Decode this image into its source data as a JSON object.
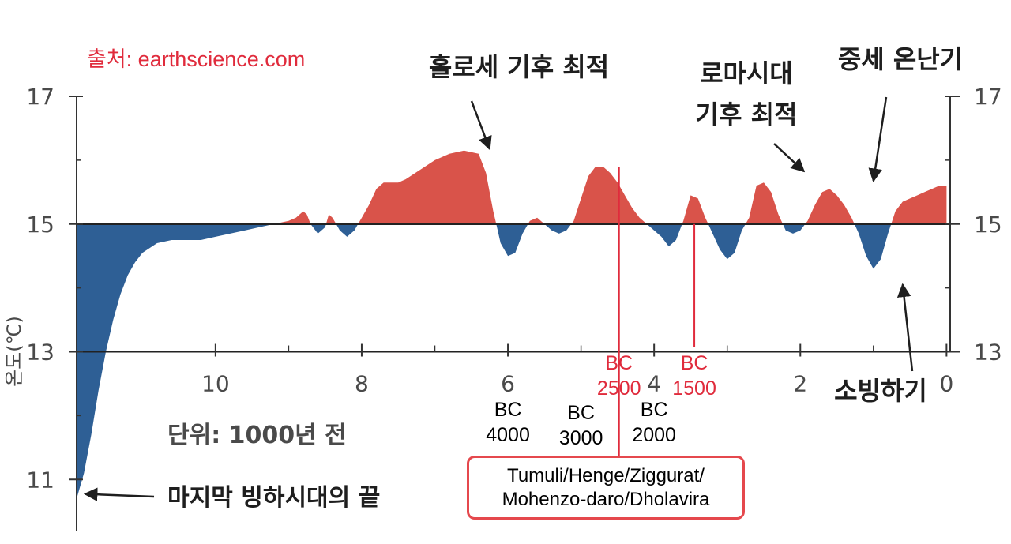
{
  "source_label": "출처: earthscience.com",
  "colors": {
    "warm": "#d9534a",
    "cold": "#2e5f95",
    "accent": "#e02b3c",
    "axis": "#333333"
  },
  "chart_data": {
    "type": "area",
    "xlabel": "단위: 1000년 전",
    "ylabel": "온도(℃)",
    "x_ticks": [
      "10",
      "8",
      "6",
      "4",
      "2",
      "0"
    ],
    "y_ticks": [
      "17",
      "15",
      "13",
      "11"
    ],
    "y_ticks_right": [
      "17",
      "15",
      "13"
    ],
    "xlim": [
      11.9,
      -0.05
    ],
    "ylim": [
      10.2,
      17
    ],
    "baseline": 15,
    "series": [
      {
        "x": [
          11.9,
          11.8,
          11.7,
          11.6,
          11.5,
          11.4,
          11.3,
          11.2,
          11.1,
          11.0,
          10.8,
          10.6,
          10.4,
          10.2,
          10.0,
          9.8,
          9.6,
          9.4,
          9.2,
          9.0,
          8.9,
          8.8,
          8.75,
          8.7,
          8.6,
          8.5,
          8.45,
          8.4,
          8.3,
          8.2,
          8.1,
          8.0,
          7.9,
          7.8,
          7.7,
          7.6,
          7.5,
          7.4,
          7.2,
          7.0,
          6.8,
          6.6,
          6.4,
          6.3,
          6.2,
          6.1,
          6.0,
          5.9,
          5.8,
          5.7,
          5.6,
          5.5,
          5.4,
          5.3,
          5.2,
          5.1,
          5.0,
          4.9,
          4.8,
          4.7,
          4.6,
          4.5,
          4.4,
          4.3,
          4.2,
          4.1,
          4.0,
          3.9,
          3.8,
          3.7,
          3.6,
          3.5,
          3.4,
          3.3,
          3.2,
          3.1,
          3.0,
          2.9,
          2.8,
          2.7,
          2.6,
          2.5,
          2.4,
          2.3,
          2.2,
          2.1,
          2.0,
          1.9,
          1.8,
          1.7,
          1.6,
          1.5,
          1.4,
          1.3,
          1.2,
          1.1,
          1.0,
          0.9,
          0.8,
          0.7,
          0.6,
          0.5,
          0.4,
          0.3,
          0.2,
          0.1,
          0.0
        ],
        "y": [
          10.7,
          11.1,
          11.7,
          12.4,
          13.0,
          13.5,
          13.9,
          14.2,
          14.4,
          14.55,
          14.7,
          14.75,
          14.75,
          14.75,
          14.8,
          14.85,
          14.9,
          14.95,
          15.0,
          15.05,
          15.1,
          15.2,
          15.15,
          15.0,
          14.85,
          14.95,
          15.15,
          15.1,
          14.9,
          14.8,
          14.9,
          15.1,
          15.3,
          15.55,
          15.65,
          15.65,
          15.65,
          15.7,
          15.85,
          16.0,
          16.1,
          16.15,
          16.1,
          15.8,
          15.2,
          14.7,
          14.5,
          14.55,
          14.85,
          15.05,
          15.1,
          15.0,
          14.9,
          14.85,
          14.9,
          15.05,
          15.4,
          15.75,
          15.9,
          15.9,
          15.8,
          15.65,
          15.45,
          15.25,
          15.1,
          15.0,
          14.9,
          14.8,
          14.65,
          14.75,
          15.05,
          15.45,
          15.4,
          15.1,
          14.85,
          14.6,
          14.45,
          14.55,
          14.9,
          15.1,
          15.6,
          15.65,
          15.5,
          15.15,
          14.9,
          14.85,
          14.9,
          15.05,
          15.3,
          15.5,
          15.55,
          15.45,
          15.3,
          15.1,
          14.85,
          14.5,
          14.3,
          14.45,
          14.85,
          15.2,
          15.35,
          15.4,
          15.45,
          15.5,
          15.55,
          15.6,
          15.6
        ]
      }
    ],
    "annotations": [
      {
        "id": "holocene",
        "text": "홀로세 기후 최적",
        "point": [
          6.25,
          16.1
        ]
      },
      {
        "id": "roman",
        "lines": [
          "로마시대",
          "기후 최적"
        ],
        "point": [
          1.95,
          15.75
        ]
      },
      {
        "id": "medieval",
        "text": "중세 온난기",
        "point": [
          1.0,
          15.6
        ]
      },
      {
        "id": "little_ice",
        "text": "소빙하기",
        "point": [
          0.6,
          14.3
        ]
      },
      {
        "id": "end_ice",
        "text": "마지막 빙하시대의 끝",
        "point": [
          11.85,
          10.7
        ]
      }
    ],
    "era_markers": [
      {
        "lines": [
          "BC",
          "2500"
        ],
        "x": 4.48,
        "highlight": true
      },
      {
        "lines": [
          "BC",
          "1500"
        ],
        "x": 3.45,
        "highlight": true
      },
      {
        "lines": [
          "BC",
          "4000"
        ],
        "x": 6.0,
        "highlight": false
      },
      {
        "lines": [
          "BC",
          "3000"
        ],
        "x": 5.0,
        "highlight": false
      },
      {
        "lines": [
          "BC",
          "2000"
        ],
        "x": 4.0,
        "highlight": false
      }
    ]
  },
  "note_box": {
    "line1": "Tumuli/Henge/Ziggurat/",
    "line2": "Mohenzo-daro/Dholavira"
  }
}
